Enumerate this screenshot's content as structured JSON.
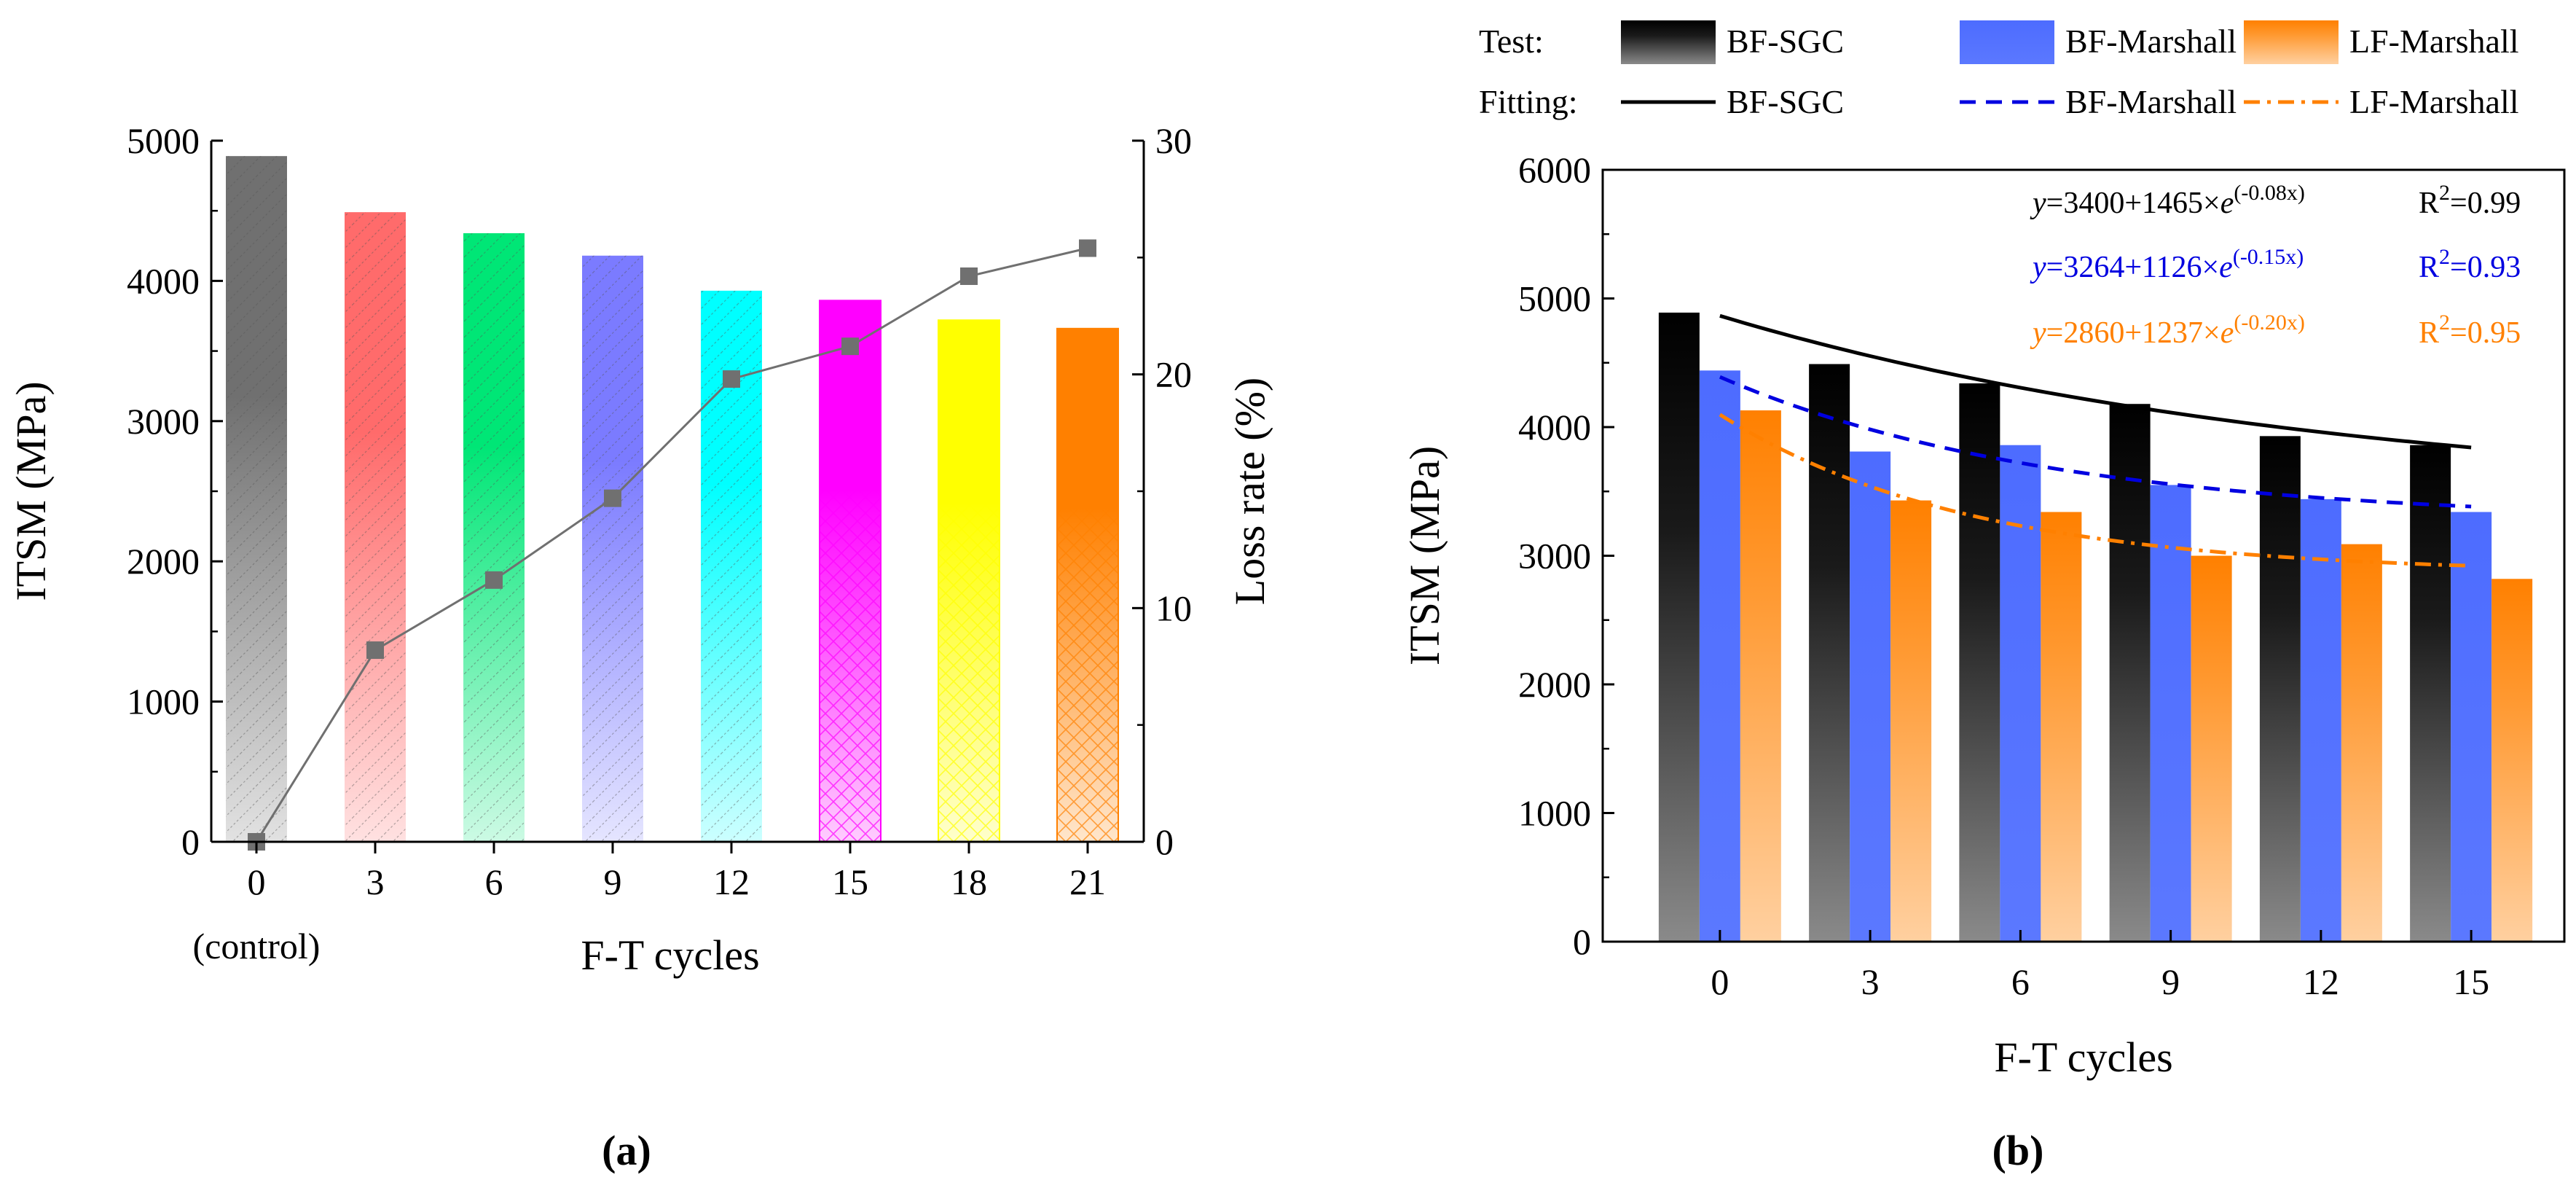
{
  "chart_data": [
    {
      "type": "bar",
      "caption": "(a)",
      "categories": [
        "0",
        "3",
        "6",
        "9",
        "12",
        "15",
        "18",
        "21"
      ],
      "category_sublabel": "(control)",
      "values": [
        4890,
        4490,
        4340,
        4180,
        3930,
        3860,
        3720,
        3660
      ],
      "bar_colors": [
        "#707070",
        "#ff6b6b",
        "#00e676",
        "#7b7bff",
        "#00ffff",
        "#ff00ff",
        "#ffff00",
        "#ff8000"
      ],
      "xlabel": "F-T cycles",
      "ylabel": "ITSM (MPa)",
      "ylim": [
        0,
        5000
      ],
      "yticks": [
        "0",
        "1000",
        "2000",
        "3000",
        "4000",
        "5000"
      ],
      "y2label": "Loss rate (%)",
      "y2lim": [
        0,
        30
      ],
      "y2ticks": [
        "0",
        "10",
        "20",
        "30"
      ],
      "line_series": {
        "values": [
          0,
          8.2,
          11.2,
          14.7,
          19.8,
          21.2,
          24.2,
          25.4
        ],
        "color": "#707070"
      },
      "grid": false
    },
    {
      "type": "bar",
      "caption": "(b)",
      "categories": [
        "0",
        "3",
        "6",
        "9",
        "12",
        "15"
      ],
      "xlabel": "F-T cycles",
      "ylabel": "ITSM (MPa)",
      "ylim": [
        0,
        6000
      ],
      "yticks": [
        "0",
        "1000",
        "2000",
        "3000",
        "4000",
        "5000",
        "6000"
      ],
      "grid": false,
      "legend_test_label": "Test:",
      "legend_fit_label": "Fitting:",
      "series": [
        {
          "name": "BF-SGC",
          "values": [
            4890,
            4490,
            4340,
            4180,
            3930,
            3860
          ],
          "color": "#000000"
        },
        {
          "name": "BF-Marshall",
          "values": [
            4440,
            3810,
            3860,
            3550,
            3440,
            3340
          ],
          "color": "#4d6cff"
        },
        {
          "name": "LF-Marshall",
          "values": [
            4130,
            3430,
            3340,
            3000,
            3090,
            2820
          ],
          "color": "#ff8c1a"
        }
      ],
      "fits": [
        {
          "name": "BF-SGC",
          "a": 3400,
          "b": 1465,
          "k": -0.08,
          "color": "#000000",
          "style": "solid",
          "eq_main": "y=3400+1465×e",
          "eq_exp": "(-0.08x)",
          "r2_label": "R",
          "r2_sup": "2",
          "r2_value": "=0.99"
        },
        {
          "name": "BF-Marshall",
          "a": 3264,
          "b": 1126,
          "k": -0.15,
          "color": "#0000e0",
          "style": "dash",
          "eq_main": "y=3264+1126×e",
          "eq_exp": "(-0.15x)",
          "r2_label": "R",
          "r2_sup": "2",
          "r2_value": "=0.93"
        },
        {
          "name": "LF-Marshall",
          "a": 2860,
          "b": 1237,
          "k": -0.2,
          "color": "#ff8000",
          "style": "dashdot",
          "eq_main": "y=2860+1237×e",
          "eq_exp": "(-0.20x)",
          "r2_label": "R",
          "r2_sup": "2",
          "r2_value": "=0.95"
        }
      ]
    }
  ]
}
